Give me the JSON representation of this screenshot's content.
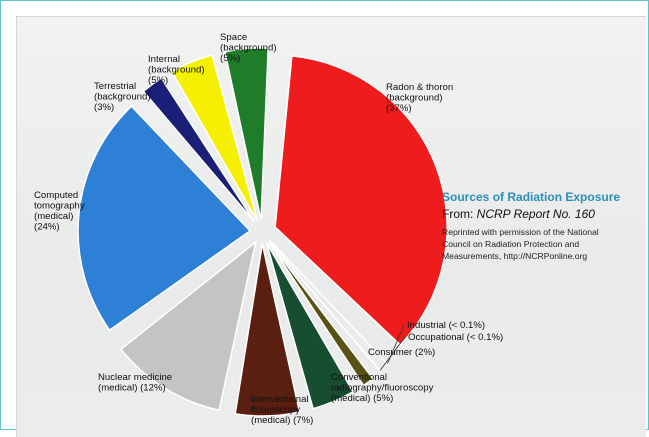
{
  "chart_data": {
    "type": "pie",
    "title": "",
    "colors": {
      "radon": "#ee1c1c",
      "industrial": "#6b7b8c",
      "occupational": "#8a9aa8",
      "consumer": "#5a5214",
      "conventional": "#174d30",
      "interventional": "#5a1f10",
      "nuclear": "#c4c4c4",
      "ct": "#2e7fd6",
      "terrestrial": "#1a1f78",
      "internal": "#f4f000",
      "space": "#1f7d2a"
    },
    "slices": [
      {
        "key": "radon",
        "value": 37,
        "label": [
          "Radon & thoron",
          "(background)",
          "(37%)"
        ]
      },
      {
        "key": "industrial",
        "value": 0.1,
        "label": [
          "Industrial (< 0.1%)"
        ]
      },
      {
        "key": "occupational",
        "value": 0.1,
        "label": [
          "Occupational (< 0.1%)"
        ]
      },
      {
        "key": "consumer",
        "value": 2,
        "label": [
          "Consumer (2%)"
        ]
      },
      {
        "key": "conventional",
        "value": 5,
        "label": [
          "Conventional",
          "radiography/fluoroscopy",
          "(medical) (5%)"
        ]
      },
      {
        "key": "interventional",
        "value": 7,
        "label": [
          "Interventional",
          "fluoroscopy",
          "(medical) (7%)"
        ]
      },
      {
        "key": "nuclear",
        "value": 12,
        "label": [
          "Nuclear medicine",
          "(medical) (12%)"
        ]
      },
      {
        "key": "ct",
        "value": 24,
        "label": [
          "Computed",
          "tomography",
          "(medical)",
          "(24%)"
        ]
      },
      {
        "key": "terrestrial",
        "value": 3,
        "label": [
          "Terrestrial",
          "(background)",
          "(3%)"
        ]
      },
      {
        "key": "internal",
        "value": 5,
        "label": [
          "Internal",
          "(background)",
          "(5%)"
        ]
      },
      {
        "key": "space",
        "value": 5,
        "label": [
          "Space",
          "(background)",
          "(5%)"
        ]
      }
    ]
  },
  "source": {
    "title": "Sources of Radiation Exposure",
    "from_prefix": "From: ",
    "from_report": "NCRP Report No. 160",
    "note_lines": [
      "Reprinted with permission of the National",
      "Council on Radiation Protection and",
      "Measurements, http://NCRPonline.org"
    ]
  }
}
